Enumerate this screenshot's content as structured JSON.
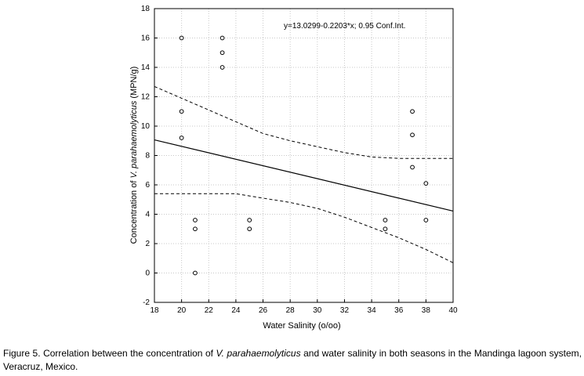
{
  "chart_data": {
    "type": "scatter",
    "title": "",
    "xlabel": "Water Salinity (o/oo)",
    "ylabel_prefix": "Concentration of ",
    "ylabel_italic": "V. parahaemolyticus",
    "ylabel_suffix": " (MPN/g)",
    "xlim": [
      18,
      40
    ],
    "ylim": [
      -2,
      18
    ],
    "xticks": [
      18,
      20,
      22,
      24,
      26,
      28,
      30,
      32,
      34,
      36,
      38,
      40
    ],
    "yticks": [
      -2,
      0,
      2,
      4,
      6,
      8,
      10,
      12,
      14,
      16,
      18
    ],
    "points": [
      {
        "x": 20,
        "y": 16
      },
      {
        "x": 20,
        "y": 11
      },
      {
        "x": 20,
        "y": 9.2
      },
      {
        "x": 21,
        "y": 3.6
      },
      {
        "x": 21,
        "y": 3
      },
      {
        "x": 21,
        "y": 0
      },
      {
        "x": 23,
        "y": 16
      },
      {
        "x": 23,
        "y": 15
      },
      {
        "x": 23,
        "y": 14
      },
      {
        "x": 25,
        "y": 3.6
      },
      {
        "x": 25,
        "y": 3
      },
      {
        "x": 35,
        "y": 3.6
      },
      {
        "x": 35,
        "y": 3
      },
      {
        "x": 37,
        "y": 11
      },
      {
        "x": 37,
        "y": 9.4
      },
      {
        "x": 37,
        "y": 7.2
      },
      {
        "x": 38,
        "y": 6.1
      },
      {
        "x": 38,
        "y": 3.6
      }
    ],
    "regression": {
      "intercept": 13.0299,
      "slope": -0.2203
    },
    "conf_upper": [
      {
        "x": 18,
        "y": 12.7
      },
      {
        "x": 20,
        "y": 11.9
      },
      {
        "x": 22,
        "y": 11.1
      },
      {
        "x": 24,
        "y": 10.3
      },
      {
        "x": 26,
        "y": 9.5
      },
      {
        "x": 28,
        "y": 9.0
      },
      {
        "x": 30,
        "y": 8.6
      },
      {
        "x": 32,
        "y": 8.2
      },
      {
        "x": 34,
        "y": 7.9
      },
      {
        "x": 36,
        "y": 7.8
      },
      {
        "x": 38,
        "y": 7.8
      },
      {
        "x": 40,
        "y": 7.8
      }
    ],
    "conf_lower": [
      {
        "x": 18,
        "y": 5.4
      },
      {
        "x": 20,
        "y": 5.4
      },
      {
        "x": 22,
        "y": 5.4
      },
      {
        "x": 24,
        "y": 5.4
      },
      {
        "x": 26,
        "y": 5.1
      },
      {
        "x": 28,
        "y": 4.8
      },
      {
        "x": 30,
        "y": 4.4
      },
      {
        "x": 32,
        "y": 3.8
      },
      {
        "x": 34,
        "y": 3.1
      },
      {
        "x": 36,
        "y": 2.4
      },
      {
        "x": 38,
        "y": 1.6
      },
      {
        "x": 40,
        "y": 0.7
      }
    ],
    "annotation": "y=13.0299-0.2203*x; 0.95 Conf.Int.",
    "grid": true
  },
  "caption": {
    "part1": "Figure 5. Correlation between the concentration of ",
    "italic": "V. parahaemolyticus",
    "part2": " and water salinity in both seasons in the Mandinga lagoon system, Veracruz, Mexico."
  }
}
